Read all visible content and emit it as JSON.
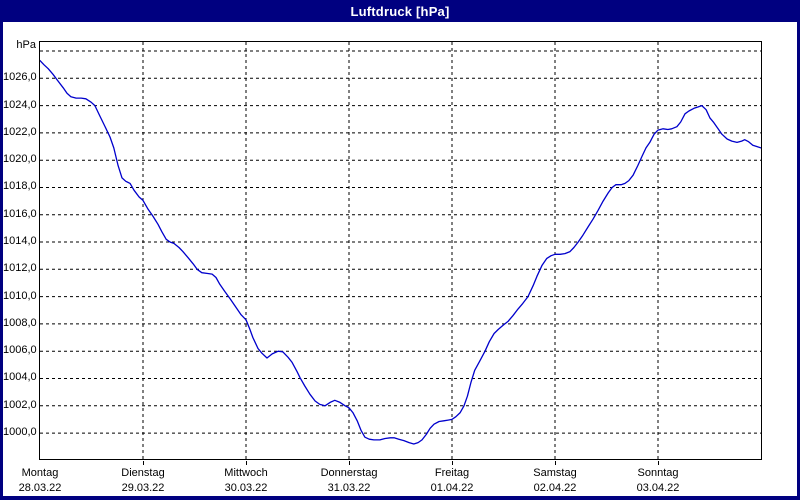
{
  "window": {
    "title": "Luftdruck [hPa]"
  },
  "colors": {
    "titlebar_bg": "#000080",
    "titlebar_text": "#ffffff",
    "window_border": "#000080",
    "plot_bg": "#ffffff",
    "frame": "#000000",
    "grid": "#000000",
    "line": "#0000cc",
    "text": "#000000"
  },
  "chart_data": {
    "type": "line",
    "title": "Luftdruck [hPa]",
    "ylabel": "hPa",
    "xlabel": "",
    "grid": "dashed",
    "legend": "none",
    "ylim": [
      998.1,
      1028.66
    ],
    "xlim_hours": [
      0,
      168
    ],
    "y_gridline_values": [
      1000,
      1002,
      1004,
      1006,
      1008,
      1010,
      1012,
      1014,
      1016,
      1018,
      1020,
      1022,
      1024,
      1026,
      1028
    ],
    "y_ticks": [
      {
        "value": 1000,
        "label": "1000,0"
      },
      {
        "value": 1002,
        "label": "1002,0"
      },
      {
        "value": 1004,
        "label": "1004,0"
      },
      {
        "value": 1006,
        "label": "1006,0"
      },
      {
        "value": 1008,
        "label": "1008,0"
      },
      {
        "value": 1010,
        "label": "1010,0"
      },
      {
        "value": 1012,
        "label": "1012,0"
      },
      {
        "value": 1014,
        "label": "1014,0"
      },
      {
        "value": 1016,
        "label": "1016,0"
      },
      {
        "value": 1018,
        "label": "1018,0"
      },
      {
        "value": 1020,
        "label": "1020,0"
      },
      {
        "value": 1022,
        "label": "1022,0"
      },
      {
        "value": 1024,
        "label": "1024,0"
      },
      {
        "value": 1026,
        "label": "1026,0"
      }
    ],
    "x_days": [
      {
        "label": "Montag",
        "date": "28.03.22",
        "hour": 0
      },
      {
        "label": "Dienstag",
        "date": "29.03.22",
        "hour": 24
      },
      {
        "label": "Mittwoch",
        "date": "30.03.22",
        "hour": 48
      },
      {
        "label": "Donnerstag",
        "date": "31.03.22",
        "hour": 72
      },
      {
        "label": "Freitag",
        "date": "01.04.22",
        "hour": 96
      },
      {
        "label": "Samstag",
        "date": "02.04.22",
        "hour": 120
      },
      {
        "label": "Sonntag",
        "date": "03.04.22",
        "hour": 144
      }
    ],
    "series": [
      {
        "name": "Luftdruck",
        "unit": "hPa",
        "points": [
          [
            0,
            1027.3
          ],
          [
            0.9,
            1027.0
          ],
          [
            1.9,
            1026.7
          ],
          [
            3,
            1026.3
          ],
          [
            4.2,
            1025.8
          ],
          [
            5.4,
            1025.3
          ],
          [
            6.3,
            1024.9
          ],
          [
            7.2,
            1024.65
          ],
          [
            8.4,
            1024.55
          ],
          [
            9.6,
            1024.55
          ],
          [
            10.7,
            1024.5
          ],
          [
            11.9,
            1024.25
          ],
          [
            12.8,
            1024.0
          ],
          [
            14,
            1023.2
          ],
          [
            15.1,
            1022.5
          ],
          [
            16.3,
            1021.7
          ],
          [
            17.2,
            1020.9
          ],
          [
            18.2,
            1019.6
          ],
          [
            19.1,
            1018.7
          ],
          [
            20,
            1018.45
          ],
          [
            21,
            1018.3
          ],
          [
            21.9,
            1017.8
          ],
          [
            23.1,
            1017.3
          ],
          [
            24,
            1017.05
          ],
          [
            25.2,
            1016.4
          ],
          [
            26.3,
            1015.9
          ],
          [
            27.5,
            1015.3
          ],
          [
            28.4,
            1014.75
          ],
          [
            29.4,
            1014.2
          ],
          [
            30.3,
            1014.0
          ],
          [
            31.2,
            1013.9
          ],
          [
            32.4,
            1013.6
          ],
          [
            33.3,
            1013.3
          ],
          [
            34.5,
            1012.85
          ],
          [
            35.7,
            1012.4
          ],
          [
            36.6,
            1012.0
          ],
          [
            37.7,
            1011.75
          ],
          [
            38.9,
            1011.7
          ],
          [
            40.1,
            1011.65
          ],
          [
            41,
            1011.4
          ],
          [
            41.9,
            1010.9
          ],
          [
            43.1,
            1010.35
          ],
          [
            44.3,
            1009.85
          ],
          [
            45.7,
            1009.2
          ],
          [
            46.8,
            1008.7
          ],
          [
            48,
            1008.3
          ],
          [
            48.9,
            1007.6
          ],
          [
            49.6,
            1007.0
          ],
          [
            50.8,
            1006.2
          ],
          [
            51.7,
            1005.85
          ],
          [
            52.9,
            1005.5
          ],
          [
            54.1,
            1005.8
          ],
          [
            55.5,
            1006.0
          ],
          [
            56.6,
            1005.95
          ],
          [
            57.8,
            1005.55
          ],
          [
            58.7,
            1005.2
          ],
          [
            59.9,
            1004.5
          ],
          [
            60.6,
            1004.05
          ],
          [
            61.7,
            1003.45
          ],
          [
            62.9,
            1002.85
          ],
          [
            64.1,
            1002.35
          ],
          [
            65.2,
            1002.1
          ],
          [
            66.4,
            1002.0
          ],
          [
            67.6,
            1002.25
          ],
          [
            68.7,
            1002.4
          ],
          [
            69.9,
            1002.25
          ],
          [
            71.1,
            1002.0
          ],
          [
            72,
            1001.85
          ],
          [
            72.9,
            1001.5
          ],
          [
            73.9,
            1000.9
          ],
          [
            74.8,
            1000.2
          ],
          [
            75.7,
            999.7
          ],
          [
            76.7,
            999.55
          ],
          [
            77.8,
            999.5
          ],
          [
            79.2,
            999.5
          ],
          [
            80.4,
            999.6
          ],
          [
            81.6,
            999.65
          ],
          [
            82.5,
            999.65
          ],
          [
            83.6,
            999.55
          ],
          [
            84.8,
            999.45
          ],
          [
            86,
            999.3
          ],
          [
            87.1,
            999.2
          ],
          [
            88.1,
            999.3
          ],
          [
            89,
            999.5
          ],
          [
            90,
            999.9
          ],
          [
            90.9,
            1000.35
          ],
          [
            91.8,
            1000.65
          ],
          [
            93,
            1000.85
          ],
          [
            94.1,
            1000.9
          ],
          [
            95.1,
            1000.95
          ],
          [
            96,
            1001.0
          ],
          [
            96.9,
            1001.2
          ],
          [
            97.9,
            1001.5
          ],
          [
            98.8,
            1002.0
          ],
          [
            99.6,
            1002.7
          ],
          [
            100.4,
            1003.7
          ],
          [
            101.3,
            1004.6
          ],
          [
            102.5,
            1005.3
          ],
          [
            103.7,
            1006.0
          ],
          [
            104.7,
            1006.7
          ],
          [
            105.8,
            1007.3
          ],
          [
            106.8,
            1007.6
          ],
          [
            107.9,
            1007.9
          ],
          [
            109.1,
            1008.2
          ],
          [
            110.2,
            1008.6
          ],
          [
            111.4,
            1009.1
          ],
          [
            112.5,
            1009.5
          ],
          [
            113.7,
            1010.0
          ],
          [
            114.9,
            1010.8
          ],
          [
            115.8,
            1011.5
          ],
          [
            117,
            1012.3
          ],
          [
            118.1,
            1012.8
          ],
          [
            119.1,
            1013.0
          ],
          [
            120,
            1013.1
          ],
          [
            121.2,
            1013.1
          ],
          [
            122.3,
            1013.15
          ],
          [
            123.5,
            1013.3
          ],
          [
            124.4,
            1013.6
          ],
          [
            125.4,
            1014.0
          ],
          [
            126.5,
            1014.5
          ],
          [
            127.7,
            1015.1
          ],
          [
            128.9,
            1015.7
          ],
          [
            130,
            1016.3
          ],
          [
            131.2,
            1017.0
          ],
          [
            132.4,
            1017.6
          ],
          [
            133.3,
            1018.0
          ],
          [
            134.2,
            1018.2
          ],
          [
            135.4,
            1018.2
          ],
          [
            136.3,
            1018.3
          ],
          [
            137.2,
            1018.5
          ],
          [
            138.2,
            1018.9
          ],
          [
            139.3,
            1019.6
          ],
          [
            140.3,
            1020.3
          ],
          [
            141.2,
            1020.9
          ],
          [
            142.1,
            1021.3
          ],
          [
            143.1,
            1021.9
          ],
          [
            144,
            1022.2
          ],
          [
            145.2,
            1022.3
          ],
          [
            146.3,
            1022.25
          ],
          [
            147.2,
            1022.3
          ],
          [
            148.4,
            1022.45
          ],
          [
            149.3,
            1022.8
          ],
          [
            150.3,
            1023.4
          ],
          [
            151.2,
            1023.6
          ],
          [
            152.4,
            1023.8
          ],
          [
            153.3,
            1023.9
          ],
          [
            154.2,
            1024.0
          ],
          [
            155.2,
            1023.7
          ],
          [
            156.1,
            1023.1
          ],
          [
            157,
            1022.75
          ],
          [
            158,
            1022.3
          ],
          [
            158.9,
            1021.9
          ],
          [
            160.1,
            1021.55
          ],
          [
            161.2,
            1021.4
          ],
          [
            162.4,
            1021.3
          ],
          [
            163.5,
            1021.4
          ],
          [
            164.2,
            1021.5
          ],
          [
            165.1,
            1021.35
          ],
          [
            166.1,
            1021.1
          ],
          [
            167,
            1021.0
          ],
          [
            168,
            1020.9
          ]
        ]
      }
    ]
  }
}
